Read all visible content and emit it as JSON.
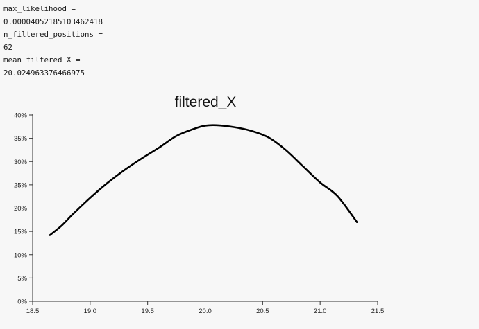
{
  "output": {
    "lines": [
      "max_likelihood =",
      "0.00004052185103462418",
      "n_filtered_positions =",
      "62",
      "mean filtered_X =",
      "20.024963376466975"
    ]
  },
  "chart_data": {
    "type": "line",
    "title": "filtered_X",
    "xlabel": "",
    "ylabel": "",
    "xlim": [
      18.5,
      21.5
    ],
    "ylim": [
      0,
      0.4
    ],
    "x_ticks": [
      18.5,
      19.0,
      19.5,
      20.0,
      20.5,
      21.0,
      21.5
    ],
    "x_tick_labels": [
      "18.5",
      "19.0",
      "19.5",
      "20.0",
      "20.5",
      "21.0",
      "21.5"
    ],
    "y_ticks": [
      0,
      0.05,
      0.1,
      0.15,
      0.2,
      0.25,
      0.3,
      0.35,
      0.4
    ],
    "y_tick_labels": [
      "0%",
      "5%",
      "10%",
      "15%",
      "20%",
      "25%",
      "30%",
      "35%",
      "40%"
    ],
    "grid": false,
    "series": [
      {
        "x": [
          18.65,
          18.75,
          18.85,
          19.0,
          19.15,
          19.3,
          19.45,
          19.6,
          19.75,
          19.9,
          20.0,
          20.1,
          20.25,
          20.4,
          20.55,
          20.7,
          20.85,
          21.0,
          21.15,
          21.32
        ],
        "y": [
          0.142,
          0.162,
          0.187,
          0.222,
          0.254,
          0.282,
          0.307,
          0.33,
          0.355,
          0.37,
          0.377,
          0.378,
          0.374,
          0.366,
          0.352,
          0.325,
          0.29,
          0.255,
          0.226,
          0.17
        ],
        "color": "#000000"
      }
    ]
  }
}
